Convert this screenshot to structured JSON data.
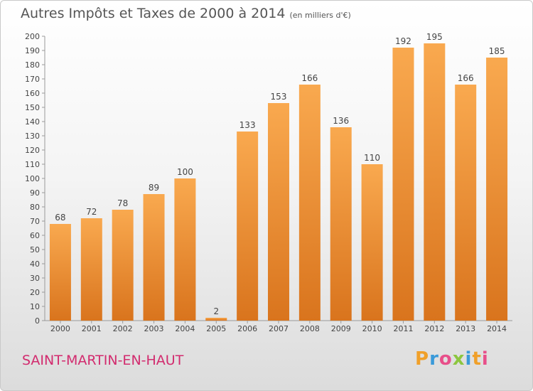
{
  "header": {
    "title": "Autres Impôts et Taxes de 2000 à 2014",
    "subtitle": "(en milliers d'€)"
  },
  "footer": {
    "commune": "SAINT-MARTIN-EN-HAUT",
    "logo_text": "Proxiti"
  },
  "colors": {
    "bar_light": "#f9a94f",
    "bar_dark": "#d9741d",
    "commune": "#d22b6e"
  },
  "chart_data": {
    "type": "bar",
    "title": "Autres Impôts et Taxes de 2000 à 2014",
    "subtitle": "(en milliers d'€)",
    "categories": [
      "2000",
      "2001",
      "2002",
      "2003",
      "2004",
      "2005",
      "2006",
      "2007",
      "2008",
      "2009",
      "2010",
      "2011",
      "2012",
      "2013",
      "2014"
    ],
    "values": [
      68,
      72,
      78,
      89,
      100,
      2,
      133,
      153,
      166,
      136,
      110,
      192,
      195,
      166,
      185
    ],
    "ylim": [
      0,
      200
    ],
    "ytick_step": 10,
    "grid": false,
    "data_labels": true
  }
}
